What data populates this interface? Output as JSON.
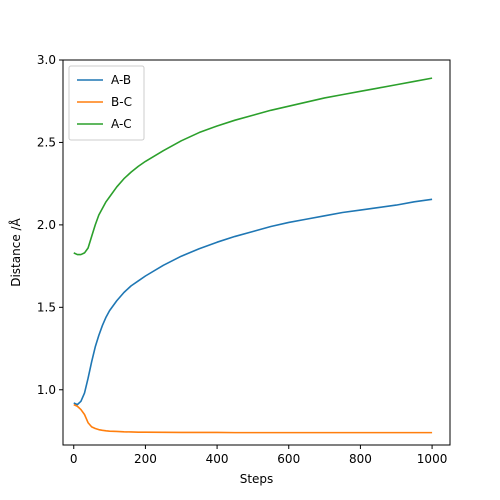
{
  "chart_data": {
    "type": "line",
    "title": "",
    "xlabel": "Steps",
    "ylabel": "Distance /Å",
    "xlim": [
      -30,
      1050
    ],
    "ylim": [
      0.665,
      3.0
    ],
    "xticks": [
      0,
      200,
      400,
      600,
      800,
      1000
    ],
    "yticks": [
      1.0,
      1.5,
      2.0,
      2.5,
      3.0
    ],
    "xtick_labels": [
      "0",
      "200",
      "400",
      "600",
      "800",
      "1000"
    ],
    "ytick_labels": [
      "1.0",
      "1.5",
      "2.0",
      "2.5",
      "3.0"
    ],
    "grid": false,
    "legend_position": "top-left",
    "x": [
      0,
      10,
      20,
      30,
      40,
      50,
      60,
      70,
      80,
      90,
      100,
      120,
      140,
      160,
      180,
      200,
      250,
      300,
      350,
      400,
      450,
      500,
      550,
      600,
      650,
      700,
      750,
      800,
      850,
      900,
      950,
      1000
    ],
    "series": [
      {
        "name": "A-B",
        "color": "#1f77b4",
        "values": [
          0.92,
          0.91,
          0.93,
          0.98,
          1.07,
          1.17,
          1.26,
          1.33,
          1.39,
          1.44,
          1.48,
          1.54,
          1.59,
          1.63,
          1.66,
          1.69,
          1.755,
          1.81,
          1.855,
          1.895,
          1.93,
          1.96,
          1.99,
          2.015,
          2.035,
          2.055,
          2.075,
          2.09,
          2.105,
          2.12,
          2.14,
          2.155
        ]
      },
      {
        "name": "B-C",
        "color": "#ff7f0e",
        "values": [
          0.91,
          0.9,
          0.88,
          0.85,
          0.8,
          0.775,
          0.765,
          0.758,
          0.754,
          0.751,
          0.749,
          0.747,
          0.745,
          0.744,
          0.743,
          0.743,
          0.742,
          0.741,
          0.741,
          0.741,
          0.74,
          0.74,
          0.74,
          0.74,
          0.74,
          0.74,
          0.74,
          0.74,
          0.74,
          0.74,
          0.74,
          0.74
        ]
      },
      {
        "name": "A-C",
        "color": "#2ca02c",
        "values": [
          1.83,
          1.82,
          1.82,
          1.83,
          1.86,
          1.93,
          2.0,
          2.06,
          2.1,
          2.14,
          2.17,
          2.23,
          2.28,
          2.32,
          2.355,
          2.385,
          2.45,
          2.51,
          2.56,
          2.6,
          2.635,
          2.665,
          2.695,
          2.72,
          2.745,
          2.77,
          2.79,
          2.81,
          2.83,
          2.85,
          2.87,
          2.89
        ]
      }
    ]
  }
}
